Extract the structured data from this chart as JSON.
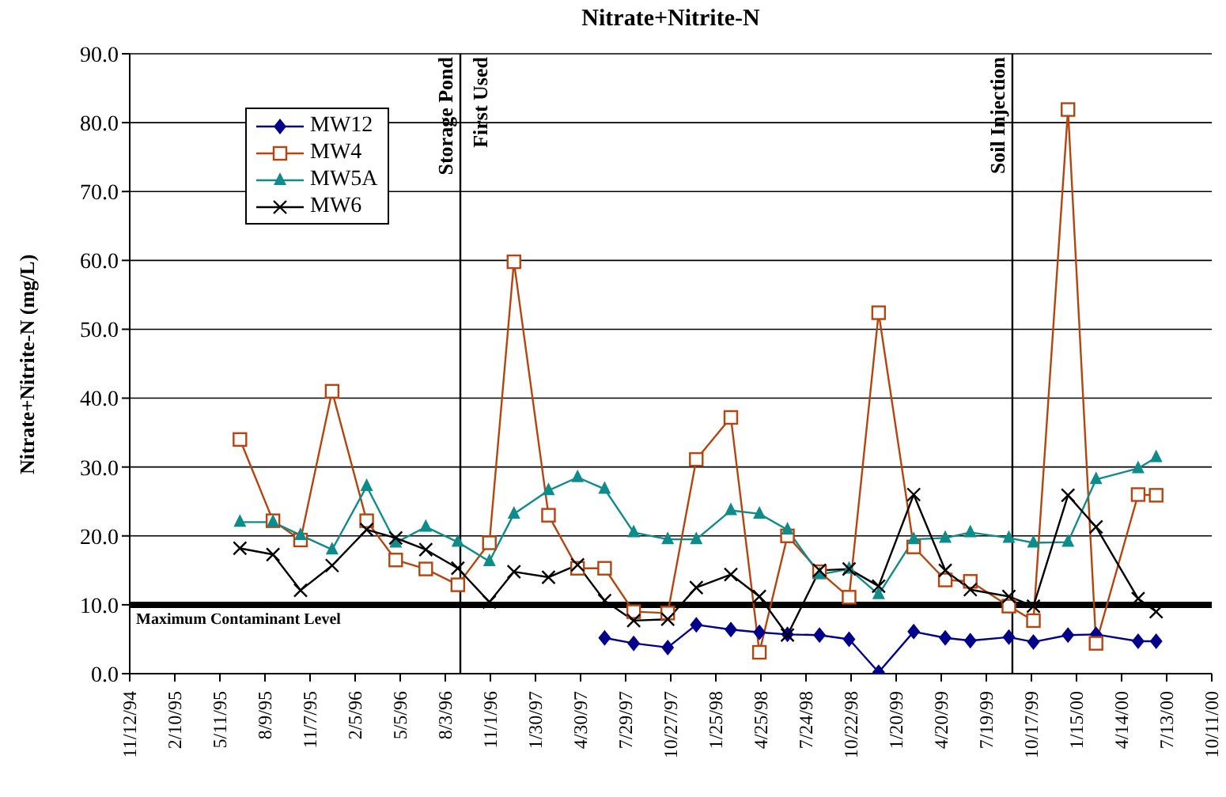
{
  "chart_data": {
    "type": "line",
    "title": "Nitrate+Nitrite-N",
    "ylabel": "Nitrate+Nitrite-N (mg/L)",
    "x": [
      "1995-06-20",
      "1995-08-25",
      "1995-10-19",
      "1995-12-21",
      "1996-02-28",
      "1996-04-26",
      "1996-06-25",
      "1996-08-28",
      "1996-10-30",
      "1996-12-18",
      "1997-02-25",
      "1997-04-24",
      "1997-06-17",
      "1997-08-14",
      "1997-10-21",
      "1997-12-17",
      "1998-02-24",
      "1998-04-22",
      "1998-06-17",
      "1998-08-20",
      "1998-10-18",
      "1998-12-16",
      "1999-02-24",
      "1999-04-28",
      "1999-06-17",
      "1999-09-02",
      "1999-10-21",
      "1999-12-29",
      "2000-02-23",
      "2000-05-17",
      "2000-06-22"
    ],
    "series": [
      {
        "name": "MW12",
        "color": "#00008b",
        "marker": "diamond",
        "values": [
          null,
          null,
          null,
          null,
          null,
          null,
          null,
          null,
          null,
          null,
          null,
          null,
          5.2,
          4.4,
          3.8,
          7.1,
          6.4,
          6.0,
          5.7,
          5.6,
          5.0,
          0.2,
          6.1,
          5.2,
          4.8,
          5.3,
          4.6,
          5.6,
          5.7,
          4.7,
          4.7
        ]
      },
      {
        "name": "MW4",
        "color": "#b5440e",
        "marker": "square",
        "values": [
          34.0,
          22.2,
          19.4,
          41.0,
          22.2,
          16.5,
          15.2,
          12.9,
          19.0,
          59.8,
          23.0,
          15.3,
          15.3,
          9.0,
          8.8,
          31.1,
          37.2,
          3.1,
          20.0,
          14.8,
          11.1,
          52.4,
          18.4,
          13.6,
          13.4,
          9.8,
          7.7,
          81.9,
          4.4,
          26.0,
          25.9
        ]
      },
      {
        "name": "MW5A",
        "color": "#0e8b8b",
        "marker": "triangle",
        "values": [
          22.0,
          22.0,
          20.1,
          18.0,
          27.2,
          19.0,
          21.3,
          19.1,
          16.3,
          23.2,
          26.6,
          28.5,
          26.8,
          20.5,
          19.5,
          19.5,
          23.7,
          23.2,
          20.9,
          14.4,
          15.2,
          11.5,
          19.5,
          19.7,
          20.5,
          19.7,
          19.0,
          19.1,
          28.2,
          29.8,
          31.4
        ]
      },
      {
        "name": "MW6",
        "color": "#000000",
        "marker": "cross",
        "values": [
          18.2,
          17.3,
          12.1,
          15.7,
          20.9,
          19.7,
          18.0,
          15.3,
          10.4,
          14.8,
          14.0,
          15.8,
          10.6,
          7.7,
          7.9,
          12.5,
          14.4,
          11.2,
          5.6,
          15.0,
          15.2,
          12.7,
          26.0,
          15.0,
          12.2,
          11.2,
          9.8,
          25.9,
          21.3,
          10.9,
          9.0
        ]
      }
    ],
    "xlim": [
      "1994-11-12",
      "2000-10-11"
    ],
    "xticks": [
      {
        "value": "1994-11-12",
        "label": "11/12/94"
      },
      {
        "value": "1995-02-10",
        "label": "2/10/95"
      },
      {
        "value": "1995-05-11",
        "label": "5/11/95"
      },
      {
        "value": "1995-08-09",
        "label": "8/9/95"
      },
      {
        "value": "1995-11-07",
        "label": "11/7/95"
      },
      {
        "value": "1996-02-05",
        "label": "2/5/96"
      },
      {
        "value": "1996-05-05",
        "label": "5/5/96"
      },
      {
        "value": "1996-08-03",
        "label": "8/3/96"
      },
      {
        "value": "1996-11-01",
        "label": "11/1/96"
      },
      {
        "value": "1997-01-30",
        "label": "1/30/97"
      },
      {
        "value": "1997-04-30",
        "label": "4/30/97"
      },
      {
        "value": "1997-07-29",
        "label": "7/29/97"
      },
      {
        "value": "1997-10-27",
        "label": "10/27/97"
      },
      {
        "value": "1998-01-25",
        "label": "1/25/98"
      },
      {
        "value": "1998-04-25",
        "label": "4/25/98"
      },
      {
        "value": "1998-07-24",
        "label": "7/24/98"
      },
      {
        "value": "1998-10-22",
        "label": "10/22/98"
      },
      {
        "value": "1999-01-20",
        "label": "1/20/99"
      },
      {
        "value": "1999-04-20",
        "label": "4/20/99"
      },
      {
        "value": "1999-07-19",
        "label": "7/19/99"
      },
      {
        "value": "1999-10-17",
        "label": "10/17/99"
      },
      {
        "value": "2000-01-15",
        "label": "1/15/00"
      },
      {
        "value": "2000-04-14",
        "label": "4/14/00"
      },
      {
        "value": "2000-07-13",
        "label": "7/13/00"
      },
      {
        "value": "2000-10-11",
        "label": "10/11/00"
      }
    ],
    "ylim": [
      0,
      90
    ],
    "yticks": [
      {
        "value": 0,
        "label": "0.0"
      },
      {
        "value": 10,
        "label": "10.0"
      },
      {
        "value": 20,
        "label": "20.0"
      },
      {
        "value": 30,
        "label": "30.0"
      },
      {
        "value": 40,
        "label": "40.0"
      },
      {
        "value": 50,
        "label": "50.0"
      },
      {
        "value": 60,
        "label": "60.0"
      },
      {
        "value": 70,
        "label": "70.0"
      },
      {
        "value": 80,
        "label": "80.0"
      },
      {
        "value": 90,
        "label": "90.0"
      }
    ],
    "grid": "y",
    "legend": "top left",
    "line_style": "solid",
    "ref_lines": [
      {
        "axis": "x",
        "value": "1996-09-02",
        "label": "Storage Pond\nFirst Used",
        "color": "#000000"
      },
      {
        "axis": "x",
        "value": "1999-09-09",
        "label": "Soil Injection",
        "color": "#000000"
      },
      {
        "axis": "y",
        "value": 10,
        "label": "Maximum Contaminant Level",
        "color": "#000000"
      }
    ]
  }
}
